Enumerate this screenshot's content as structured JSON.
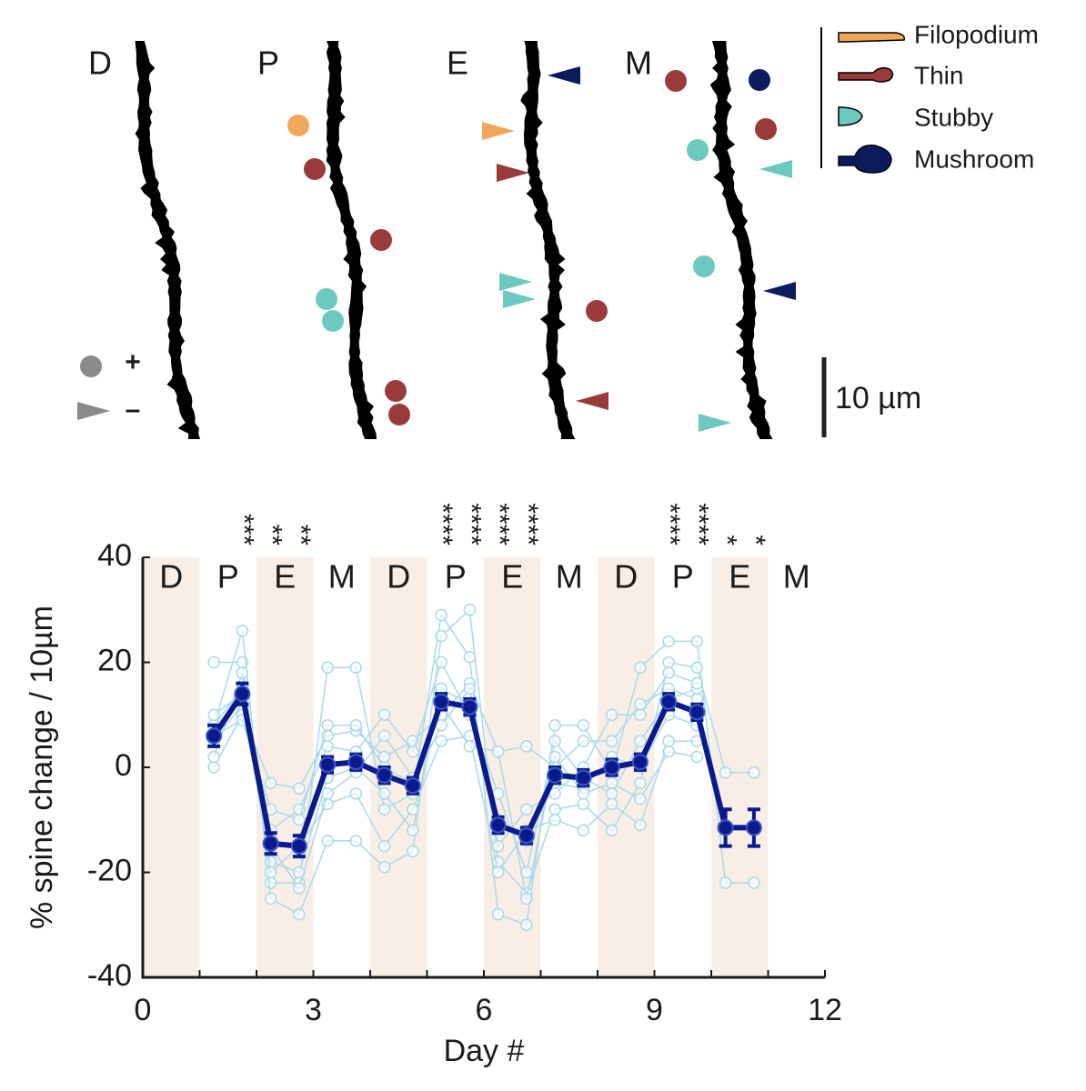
{
  "image_panel": {
    "labels": [
      "D",
      "P",
      "E",
      "M"
    ],
    "legend": [
      "Filopodium",
      "Thin",
      "Stubby",
      "Mushroom"
    ],
    "key": [
      "+",
      "–"
    ],
    "scale_bar": "10 µm"
  },
  "chart_data": {
    "type": "line",
    "xlabel": "Day #",
    "ylabel": "% spine change / 10µm",
    "xlim": [
      0,
      12
    ],
    "xticks": [
      0,
      3,
      6,
      9,
      12
    ],
    "ylim": [
      -40,
      40
    ],
    "yticks": [
      -40,
      -20,
      0,
      20,
      40
    ],
    "phases": [
      "D",
      "P",
      "E",
      "M",
      "D",
      "P",
      "E",
      "M",
      "D",
      "P",
      "E",
      "M"
    ],
    "phase_color": "#f8eee6",
    "annotations": [
      {
        "x": 1.75,
        "text": "***"
      },
      {
        "x": 2.25,
        "text": "**"
      },
      {
        "x": 2.75,
        "text": "**"
      },
      {
        "x": 5.25,
        "text": "****"
      },
      {
        "x": 5.75,
        "text": "****"
      },
      {
        "x": 6.25,
        "text": "****"
      },
      {
        "x": 6.75,
        "text": "****"
      },
      {
        "x": 9.25,
        "text": "****"
      },
      {
        "x": 9.75,
        "text": "****"
      },
      {
        "x": 10.25,
        "text": "*"
      },
      {
        "x": 10.75,
        "text": "*"
      }
    ],
    "x": [
      1.25,
      1.75,
      2.25,
      2.75,
      3.25,
      3.75,
      4.25,
      4.75,
      5.25,
      5.75,
      6.25,
      6.75,
      7.25,
      7.75,
      8.25,
      8.75,
      9.25,
      9.75,
      10.25,
      10.75
    ],
    "series": [
      {
        "color": "#a9d9ea",
        "values": [
          20,
          20,
          -22,
          -22,
          19,
          19,
          -8,
          -5,
          29,
          21,
          -28,
          -30,
          8,
          8,
          -1,
          19,
          24,
          24,
          -22,
          -22
        ]
      },
      {
        "color": "#a9d9ea",
        "values": [
          8,
          26,
          -25,
          -28,
          -14,
          -14,
          -19,
          -16,
          25,
          30,
          -18,
          -24,
          -8,
          -7,
          -12,
          -3,
          20,
          19,
          -1,
          -1
        ]
      },
      {
        "color": "#a9d9ea",
        "values": [
          0,
          10,
          -3,
          -4,
          6,
          7,
          2,
          5,
          10,
          16,
          3,
          4,
          0,
          5,
          5,
          12,
          15,
          13,
          null,
          null
        ]
      },
      {
        "color": "#a9d9ea",
        "values": [
          5,
          12,
          -18,
          -20,
          -2,
          0,
          -5,
          -12,
          15,
          12,
          -10,
          -14,
          -3,
          -4,
          2,
          0,
          10,
          8,
          null,
          null
        ]
      },
      {
        "color": "#a9d9ea",
        "values": [
          8,
          15,
          -12,
          -8,
          4,
          3,
          10,
          3,
          20,
          10,
          -5,
          -20,
          5,
          -2,
          -5,
          5,
          13,
          15,
          null,
          null
        ]
      },
      {
        "color": "#a9d9ea",
        "values": [
          2,
          18,
          -20,
          -15,
          -7,
          -5,
          -15,
          -8,
          5,
          6,
          -20,
          -12,
          -10,
          -12,
          -7,
          -11,
          5,
          5,
          null,
          null
        ]
      },
      {
        "color": "#a9d9ea",
        "values": [
          6,
          9,
          -8,
          -10,
          8,
          8,
          0,
          -3,
          8,
          15,
          -15,
          -8,
          -5,
          0,
          10,
          10,
          18,
          16,
          null,
          null
        ]
      },
      {
        "color": "#a9d9ea",
        "values": [
          10,
          14,
          -15,
          -23,
          -5,
          -1,
          6,
          -2,
          12,
          4,
          3,
          -25,
          2,
          -5,
          -3,
          -6,
          3,
          2,
          null,
          null
        ]
      },
      {
        "color": "#0a1a8c",
        "values": [
          6,
          14,
          -14.5,
          -15,
          0.5,
          1,
          -1.5,
          -3.5,
          12.5,
          11.5,
          -11,
          -13,
          -1.5,
          -2,
          0,
          1,
          12.5,
          10.5,
          -11.5,
          -11.5
        ],
        "errors": [
          2,
          2,
          2,
          2,
          1.5,
          1.5,
          1.5,
          1.5,
          1.5,
          1.5,
          1.5,
          1.5,
          1.5,
          1.5,
          1.5,
          1.5,
          1.5,
          1.5,
          3.5,
          3.5
        ]
      }
    ]
  }
}
